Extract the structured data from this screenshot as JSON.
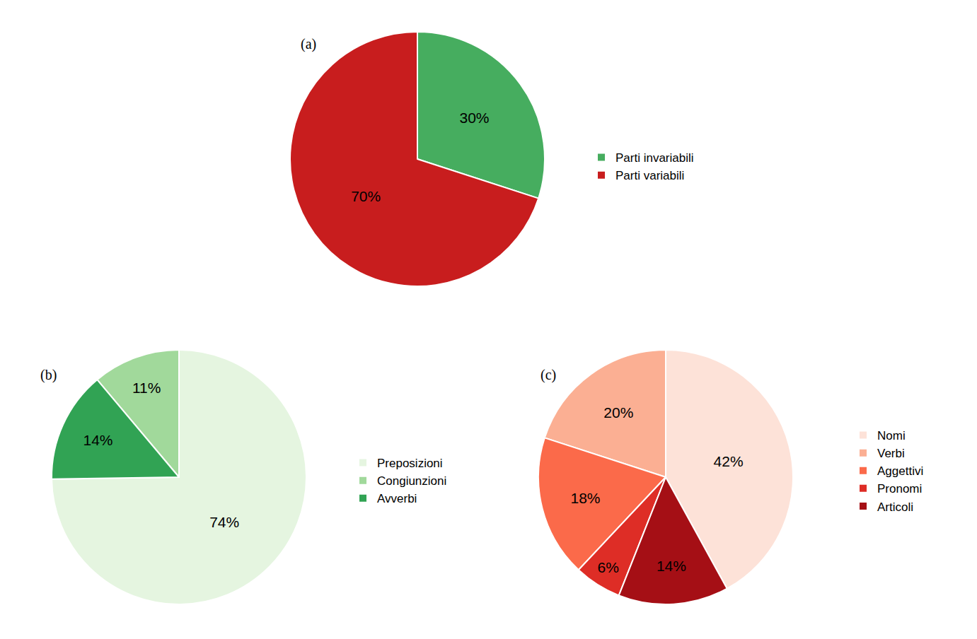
{
  "chart_data": [
    {
      "type": "pie",
      "title": "(a)",
      "legend": "right",
      "data_labels": true,
      "categories": [
        "Parti invariabili",
        "Parti variabili"
      ],
      "values": [
        30,
        70
      ],
      "value_labels": [
        "30%",
        "70%"
      ],
      "colors": [
        "#46ad5f",
        "#c81d1e"
      ]
    },
    {
      "type": "pie",
      "title": "(b)",
      "legend": "right",
      "data_labels": true,
      "categories": [
        "Preposizioni",
        "Congiunzioni",
        "Avverbi"
      ],
      "values": [
        74,
        11,
        14
      ],
      "value_labels": [
        "74%",
        "11%",
        "14%"
      ],
      "colors": [
        "#e5f5e0",
        "#a1d99b",
        "#31a354"
      ]
    },
    {
      "type": "pie",
      "title": "(c)",
      "legend": "right",
      "data_labels": true,
      "categories": [
        "Nomi",
        "Verbi",
        "Aggettivi",
        "Pronomi",
        "Articoli"
      ],
      "values": [
        42,
        20,
        18,
        6,
        14
      ],
      "value_labels": [
        "42%",
        "20%",
        "18%",
        "6%",
        "14%"
      ],
      "colors": [
        "#fde2d8",
        "#fbaf93",
        "#fb6a4a",
        "#de2d26",
        "#a50f15"
      ]
    }
  ]
}
